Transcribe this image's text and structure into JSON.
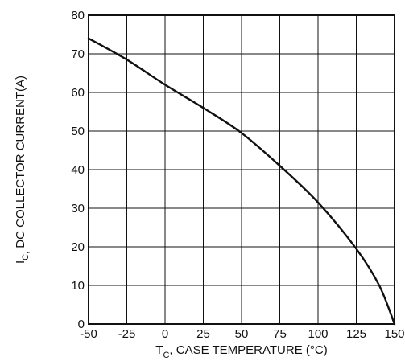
{
  "chart_data": {
    "type": "line",
    "xlabel": {
      "main": "T",
      "sub": "C",
      "rest": ", CASE TEMPERATURE (°C)"
    },
    "ylabel": {
      "main": "I",
      "sub": "C,",
      "rest": " DC COLLECTOR CURRENT(A)"
    },
    "xlim": [
      -50,
      150
    ],
    "ylim": [
      0,
      80
    ],
    "x_ticks": [
      "-50",
      "-25",
      "0",
      "25",
      "50",
      "75",
      "100",
      "125",
      "150"
    ],
    "y_ticks": [
      "0",
      "10",
      "20",
      "30",
      "40",
      "50",
      "60",
      "70",
      "80"
    ],
    "grid": true,
    "series": [
      {
        "x": [
          -50,
          -25,
          0,
          25,
          50,
          75,
          100,
          125,
          140,
          150
        ],
        "y": [
          74,
          68.5,
          62,
          56,
          49.5,
          41,
          31.5,
          19.5,
          10,
          0
        ]
      }
    ]
  }
}
